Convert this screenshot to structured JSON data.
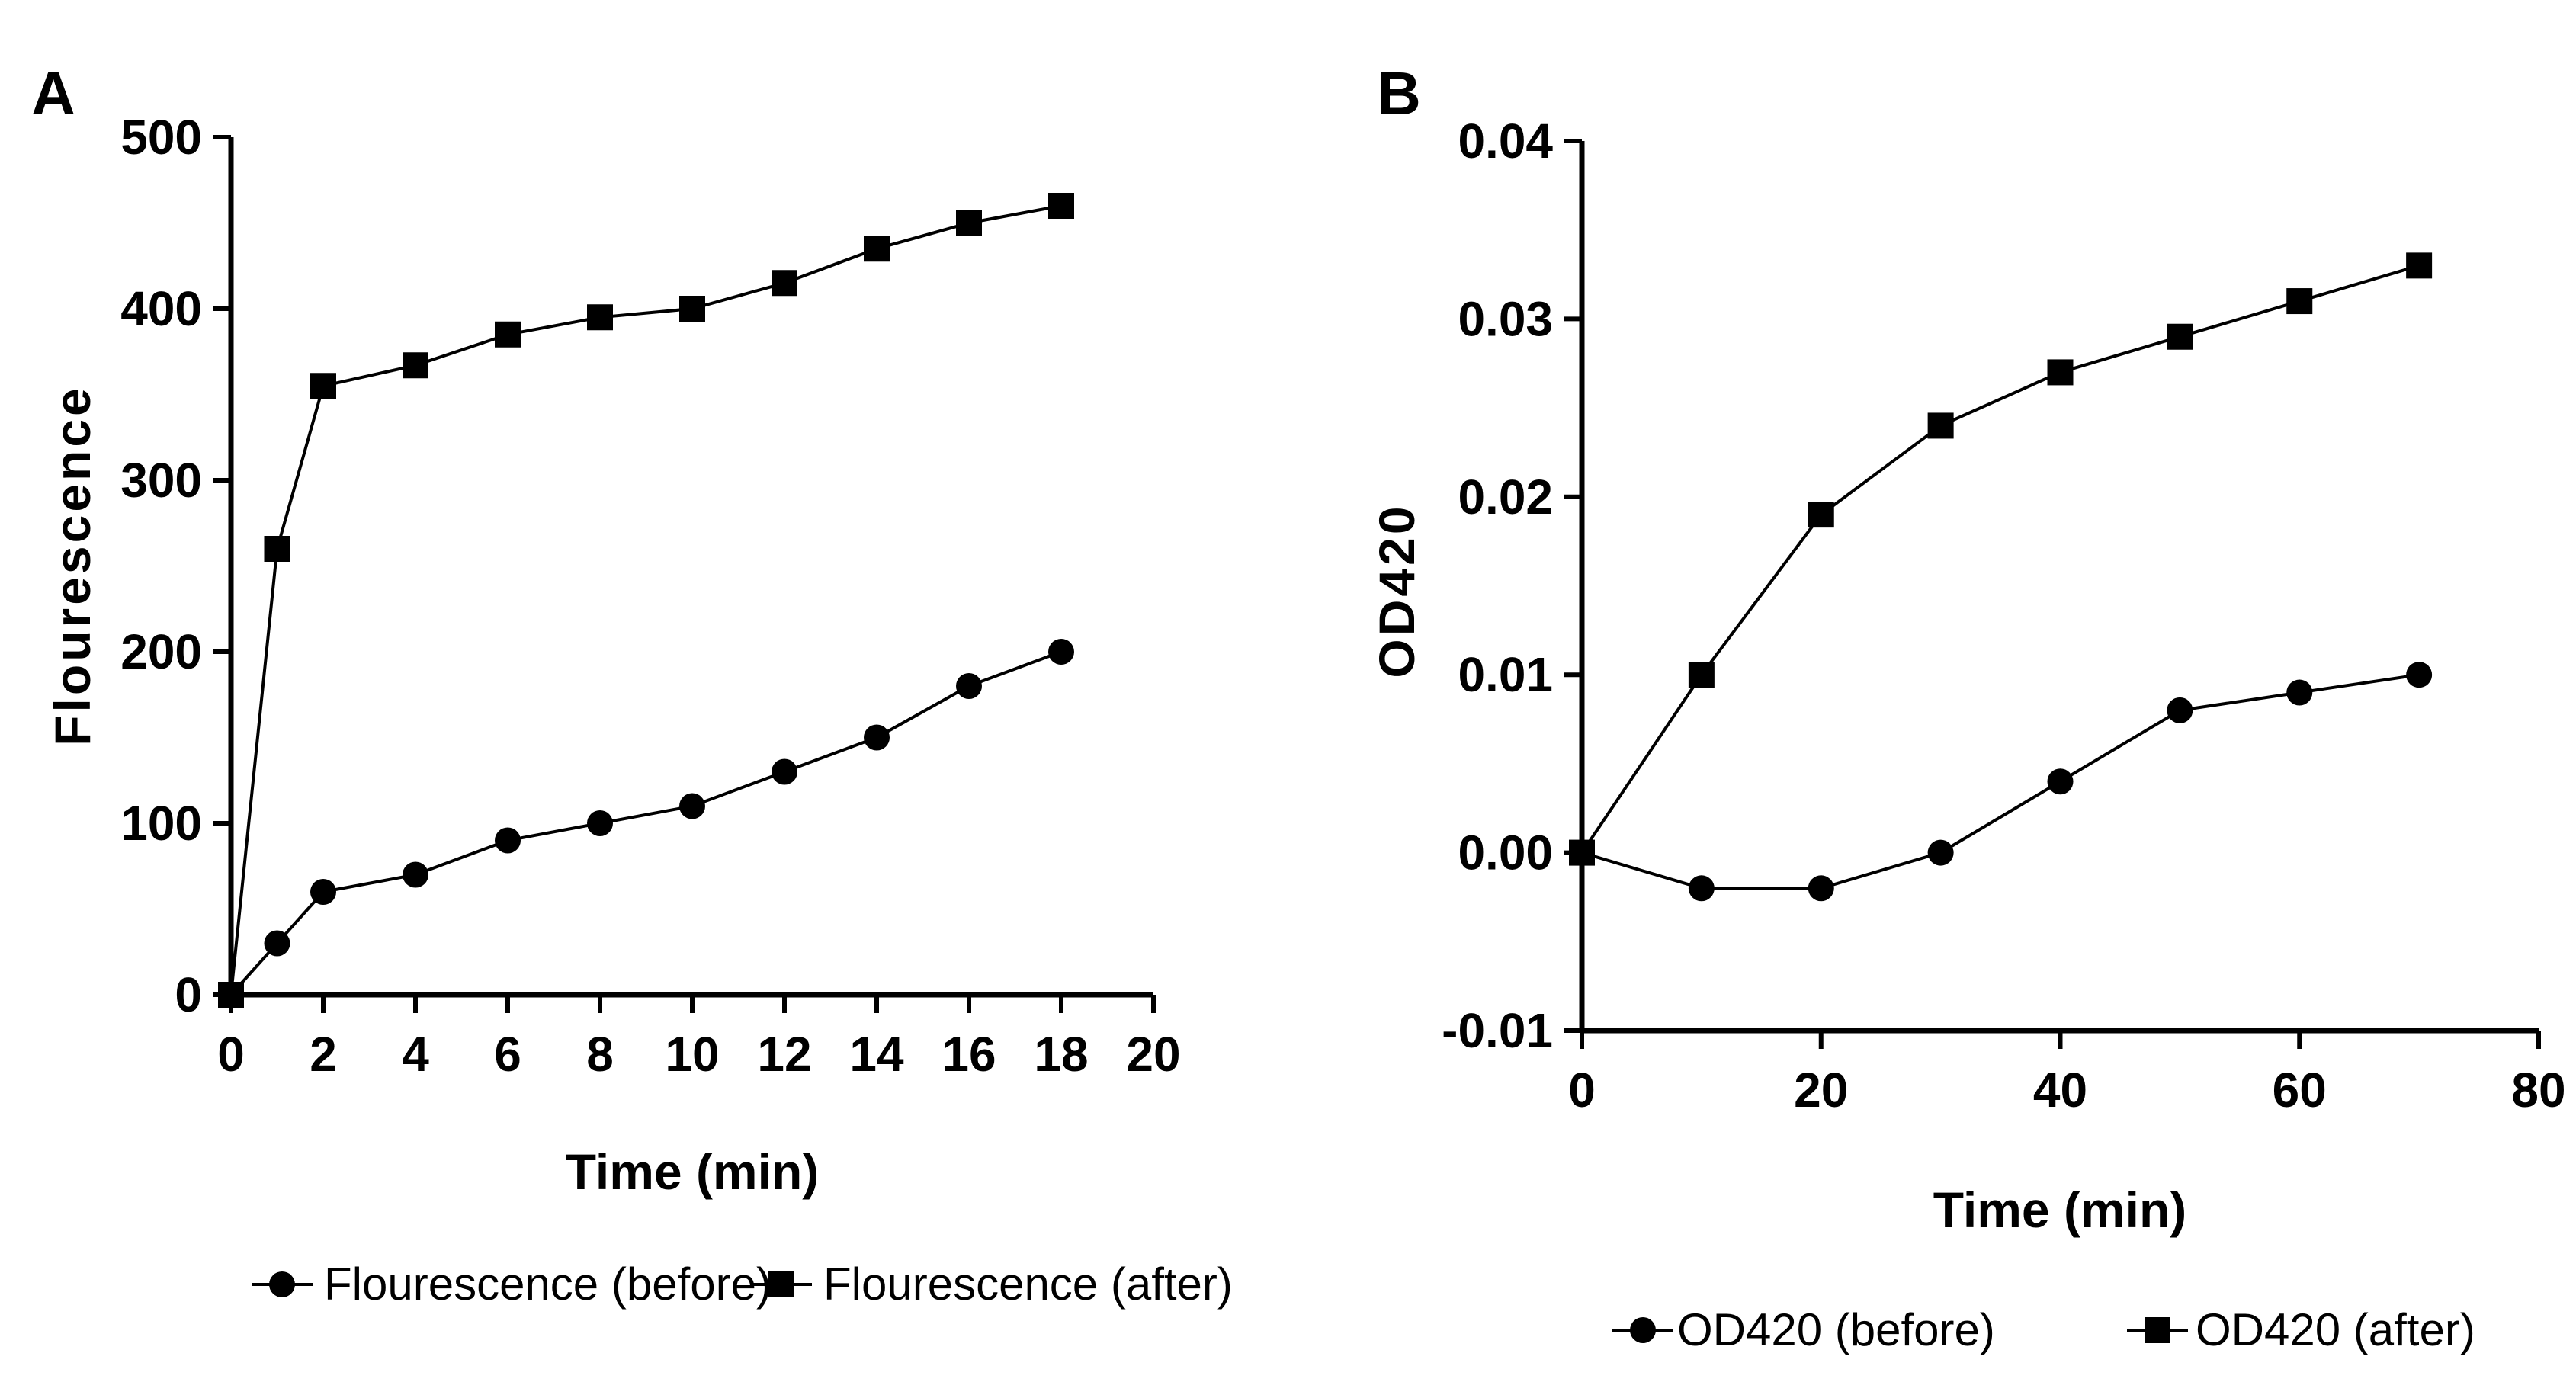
{
  "chart_data": [
    {
      "panel": "A",
      "type": "line",
      "title": "",
      "xlabel": "Time (min)",
      "ylabel": "Flourescence",
      "xlim": [
        0,
        20
      ],
      "ylim": [
        0,
        500
      ],
      "xticks": [
        0,
        2,
        4,
        6,
        8,
        10,
        12,
        14,
        16,
        18,
        20
      ],
      "yticks": [
        0,
        100,
        200,
        300,
        400,
        500
      ],
      "legend_placement": "bottom",
      "series": [
        {
          "name": "Flourescence (before)",
          "marker": "circle",
          "x": [
            0,
            1,
            2,
            4,
            6,
            8,
            10,
            12,
            14,
            16,
            18
          ],
          "y": [
            0,
            30,
            60,
            70,
            90,
            100,
            110,
            130,
            150,
            180,
            200
          ]
        },
        {
          "name": "Flourescence (after)",
          "marker": "square",
          "x": [
            0,
            1,
            2,
            4,
            6,
            8,
            10,
            12,
            14,
            16,
            18
          ],
          "y": [
            0,
            260,
            355,
            367,
            385,
            395,
            400,
            415,
            435,
            450,
            460
          ]
        }
      ]
    },
    {
      "panel": "B",
      "type": "line",
      "title": "",
      "xlabel": "Time (min)",
      "ylabel": "OD420",
      "xlim": [
        0,
        80
      ],
      "ylim": [
        -0.01,
        0.04
      ],
      "xticks": [
        0,
        20,
        40,
        60,
        80
      ],
      "yticks": [
        -0.01,
        0.0,
        0.01,
        0.02,
        0.03,
        0.04
      ],
      "ytick_labels": [
        "-0.01",
        "0.00",
        "0.01",
        "0.02",
        "0.03",
        "0.04"
      ],
      "legend_placement": "bottom",
      "series": [
        {
          "name": "OD420 (before)",
          "marker": "circle",
          "x": [
            0,
            10,
            20,
            30,
            40,
            50,
            60,
            70
          ],
          "y": [
            0,
            -0.002,
            -0.002,
            0,
            0.004,
            0.008,
            0.009,
            0.01
          ]
        },
        {
          "name": "OD420 (after)",
          "marker": "square",
          "x": [
            0,
            10,
            20,
            30,
            40,
            50,
            60,
            70
          ],
          "y": [
            0,
            0.01,
            0.019,
            0.024,
            0.027,
            0.029,
            0.031,
            0.033
          ]
        }
      ]
    }
  ]
}
